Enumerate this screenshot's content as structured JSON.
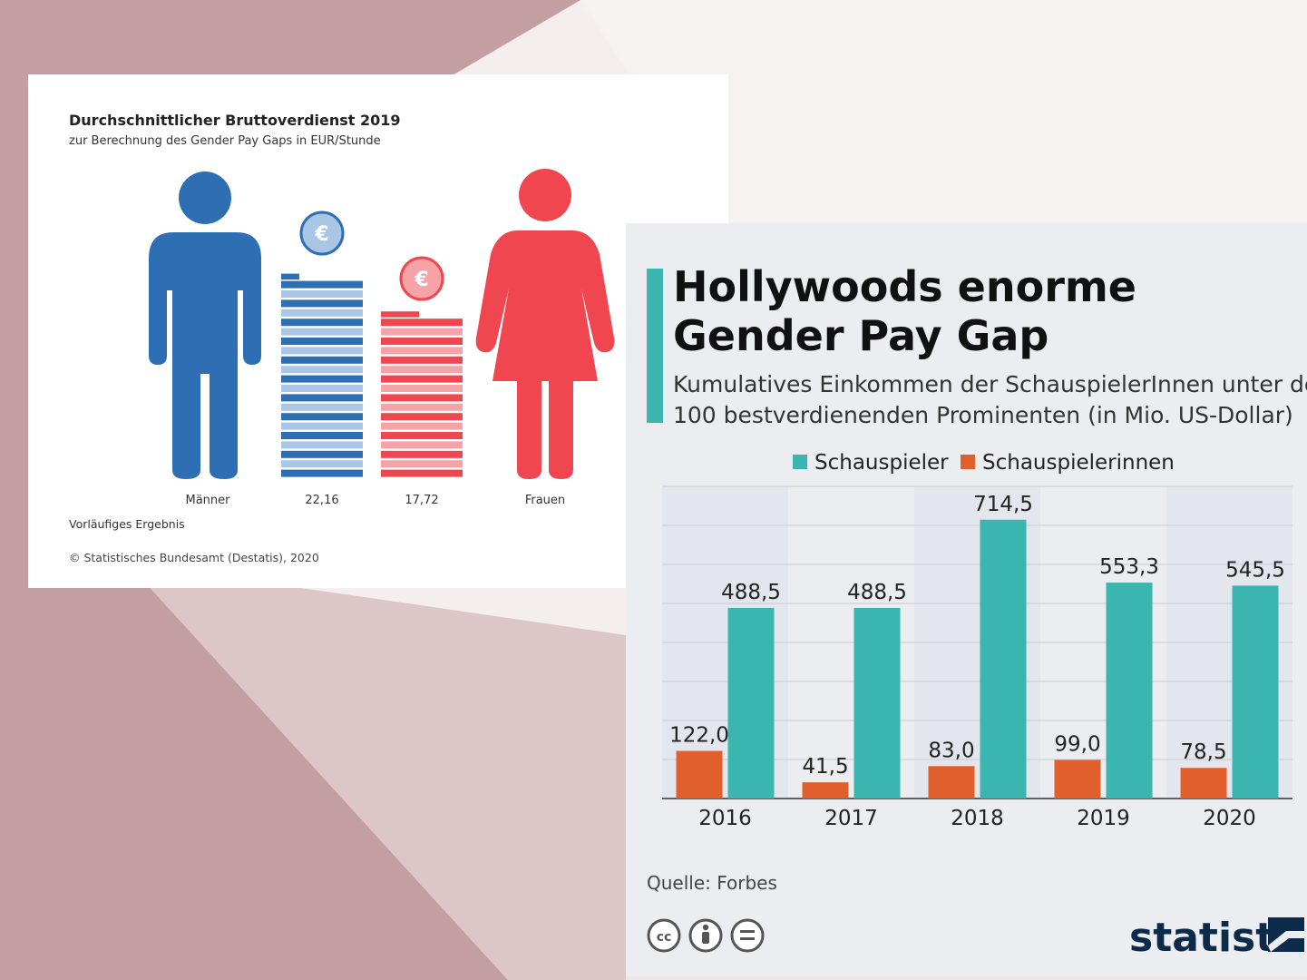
{
  "colors": {
    "men_dark": "#2e6fb3",
    "men_light": "#a9c6e6",
    "women_dark": "#f0464f",
    "women_light": "#f6a3a8",
    "teal": "#3ab5b0",
    "orange": "#e05f2c",
    "panel": "#ecedf0"
  },
  "icons": {
    "man": "man-figure-icon",
    "woman": "woman-figure-icon",
    "euro": "euro-coin-icon",
    "license": [
      "cc-icon",
      "by-icon",
      "nd-icon"
    ]
  },
  "destatis": {
    "title": "Durchschnittlicher Bruttoverdienst 2019",
    "subtitle": "zur Berechnung des Gender Pay Gaps in EUR/Stunde",
    "euro_symbol": "€",
    "labels": {
      "men": "Männer",
      "women": "Frauen"
    },
    "note": "Vorläufiges Ergebnis",
    "source": "© Statistisches Bundesamt (Destatis), 2020",
    "chart_data": {
      "type": "bar",
      "categories": [
        "Männer",
        "Frauen"
      ],
      "values": [
        22.16,
        17.72
      ],
      "value_labels": [
        "22,16",
        "17,72"
      ],
      "unit": "EUR/Stunde"
    }
  },
  "statista": {
    "title_lines": [
      "Hollywoods enorme",
      "Gender Pay Gap"
    ],
    "subtitle_lines": [
      "Kumulatives Einkommen der SchauspielerInnen unter den",
      "100 bestverdienenden Prominenten (in Mio. US-Dollar)"
    ],
    "source": "Quelle: Forbes",
    "brand": "statista",
    "chart_data": {
      "type": "bar",
      "categories": [
        "2016",
        "2017",
        "2018",
        "2019",
        "2020"
      ],
      "ylim": [
        0,
        800
      ],
      "grid": true,
      "legend": "top",
      "series": [
        {
          "name": "Schauspieler",
          "color": "#3ab5b0",
          "values": [
            488.5,
            488.5,
            714.5,
            553.3,
            545.5
          ],
          "labels": [
            "488,5",
            "488,5",
            "714,5",
            "553,3",
            "545,5"
          ]
        },
        {
          "name": "Schauspielerinnen",
          "color": "#e05f2c",
          "values": [
            122.0,
            41.5,
            83.0,
            99.0,
            78.5
          ],
          "labels": [
            "122,0",
            "41,5",
            "83,0",
            "99,0",
            "78,5"
          ]
        }
      ]
    }
  }
}
